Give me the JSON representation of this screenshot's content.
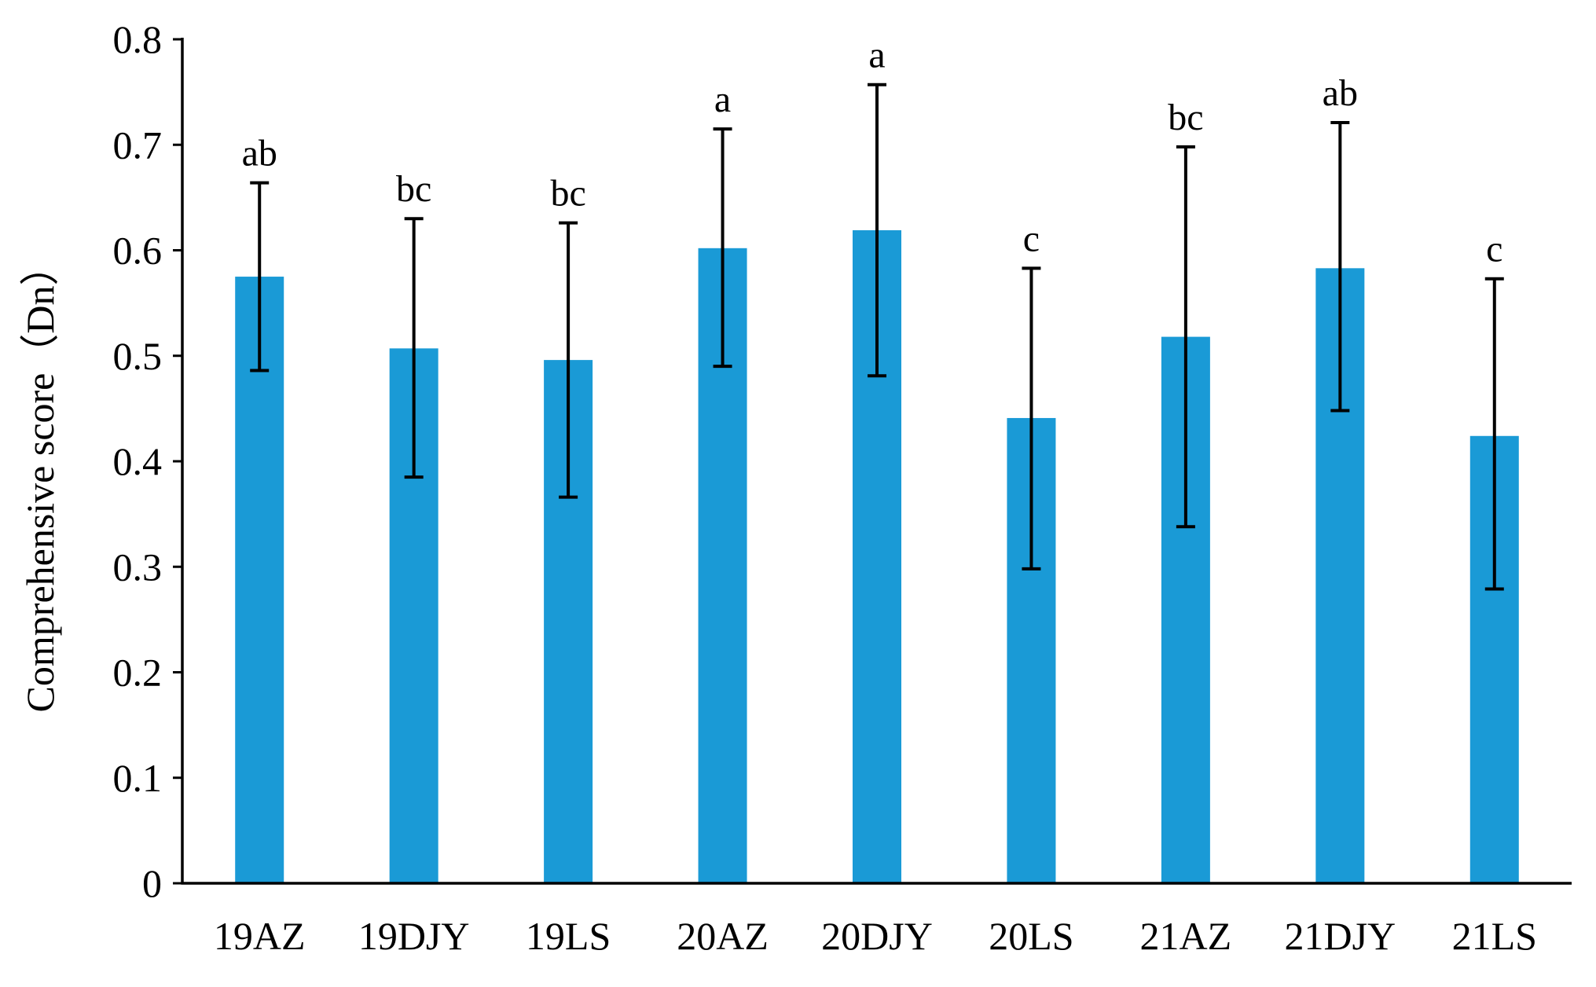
{
  "chart_data": {
    "type": "bar",
    "title": "",
    "xlabel": "",
    "ylabel": "Comprehensive score（Dn）",
    "ylim": [
      0,
      0.8
    ],
    "yticks": [
      "0",
      "0.1",
      "0.2",
      "0.3",
      "0.4",
      "0.5",
      "0.6",
      "0.7",
      "0.8"
    ],
    "grid": false,
    "legend": "none",
    "bar_color": "#1a9ad6",
    "categories": [
      "19AZ",
      "19DJY",
      "19LS",
      "20AZ",
      "20DJY",
      "20LS",
      "21AZ",
      "21DJY",
      "21LS"
    ],
    "values": [
      0.575,
      0.507,
      0.496,
      0.602,
      0.619,
      0.441,
      0.518,
      0.583,
      0.424
    ],
    "error_low": [
      0.486,
      0.385,
      0.366,
      0.49,
      0.481,
      0.298,
      0.338,
      0.448,
      0.279
    ],
    "error_high": [
      0.664,
      0.63,
      0.626,
      0.715,
      0.757,
      0.583,
      0.698,
      0.721,
      0.573
    ],
    "significance_labels": [
      "ab",
      "bc",
      "bc",
      "a",
      "a",
      "c",
      "bc",
      "ab",
      "c"
    ]
  }
}
